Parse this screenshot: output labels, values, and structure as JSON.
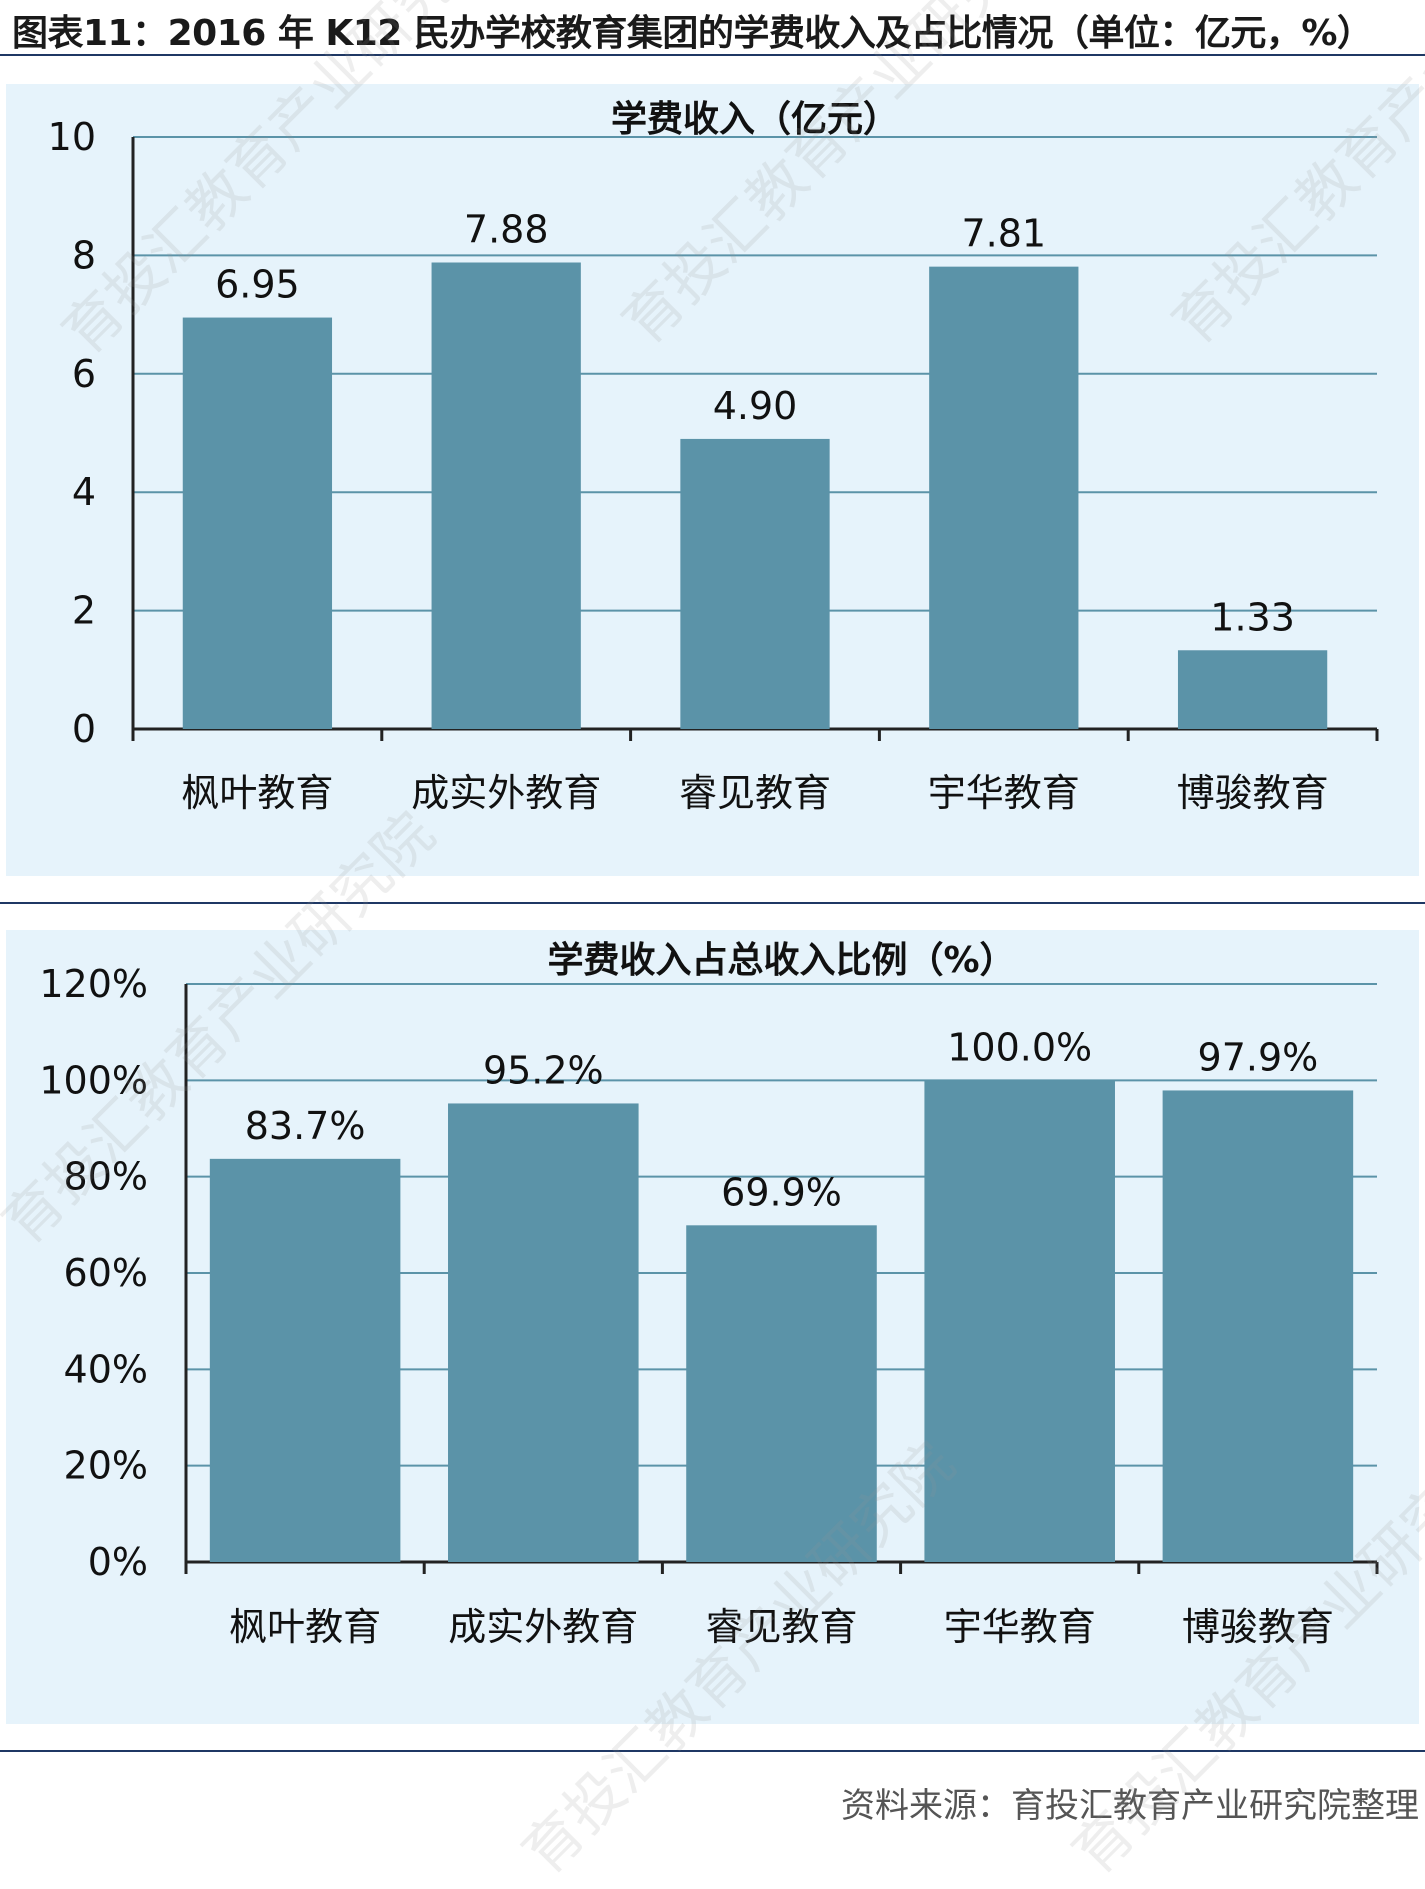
{
  "figure_title": "图表11：2016 年 K12 民办学校教育集团的学费收入及占比情况（单位：亿元，%）",
  "source": "资料来源：育投汇教育产业研究院整理",
  "watermark_text": "育投汇教育产业研究院",
  "colors": {
    "bar": "#5b93a8",
    "grid": "#5b93a8",
    "panel_bg": "#e6f3fb",
    "rule": "#1f3864"
  },
  "chart_data": [
    {
      "type": "bar",
      "title": "学费收入（亿元）",
      "categories": [
        "枫叶教育",
        "成实外教育",
        "睿见教育",
        "宇华教育",
        "博骏教育"
      ],
      "values": [
        6.95,
        7.88,
        4.9,
        7.81,
        1.33
      ],
      "data_labels": [
        "6.95",
        "7.88",
        "4.90",
        "7.81",
        "1.33"
      ],
      "yticks": [
        "0",
        "2",
        "4",
        "6",
        "8",
        "10"
      ],
      "ylim": [
        0,
        10
      ],
      "xlabel": "",
      "ylabel": "",
      "grid": true,
      "legend": "none"
    },
    {
      "type": "bar",
      "title": "学费收入占总收入比例（%）",
      "categories": [
        "枫叶教育",
        "成实外教育",
        "睿见教育",
        "宇华教育",
        "博骏教育"
      ],
      "values": [
        83.7,
        95.2,
        69.9,
        100.0,
        97.9
      ],
      "data_labels": [
        "83.7%",
        "95.2%",
        "69.9%",
        "100.0%",
        "97.9%"
      ],
      "yticks": [
        "0%",
        "20%",
        "40%",
        "60%",
        "80%",
        "100%",
        "120%"
      ],
      "ylim": [
        0,
        120
      ],
      "xlabel": "",
      "ylabel": "",
      "grid": true,
      "legend": "none"
    }
  ]
}
